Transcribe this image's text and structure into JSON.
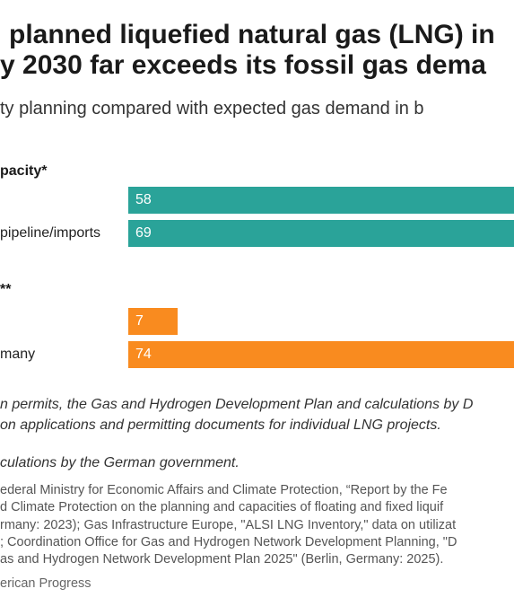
{
  "title_lines": [
    "planned liquefied natural gas (LNG) in",
    "y 2030 far exceeds its fossil gas dema"
  ],
  "subtitle": "ty planning compared with expected gas demand in b",
  "colors": {
    "teal": "#2aa399",
    "orange": "#f98b1f"
  },
  "chart_data": {
    "type": "bar",
    "orientation": "horizontal",
    "groups": [
      {
        "label": "pacity*",
        "color": "#2aa399",
        "bars": [
          {
            "category": "",
            "value": 58
          },
          {
            "category": "pipeline/imports",
            "value": 69
          }
        ]
      },
      {
        "label": "**",
        "color": "#f98b1f",
        "bars": [
          {
            "category": "",
            "value": 7
          },
          {
            "category": "many",
            "value": 74
          }
        ]
      }
    ],
    "data_labels": true
  },
  "notes": [
    "n permits, the Gas and Hydrogen Development Plan and calculations by D",
    "on applications and permitting documents for individual LNG projects.",
    "culations by the German government."
  ],
  "source_lines": [
    "ederal Ministry for Economic Affairs and Climate Protection, “Report by the Fe",
    "d Climate Protection on the planning and capacities of floating and fixed liquif",
    "rmany: 2023); Gas Infrastructure Europe, \"ALSI LNG Inventory,\" data on utilizat",
    "; Coordination Office for Gas and Hydrogen Network Development Planning, \"D",
    "as and Hydrogen Network Development Plan 2025\" (Berlin, Germany: 2025)."
  ],
  "credit": "erican Progress"
}
